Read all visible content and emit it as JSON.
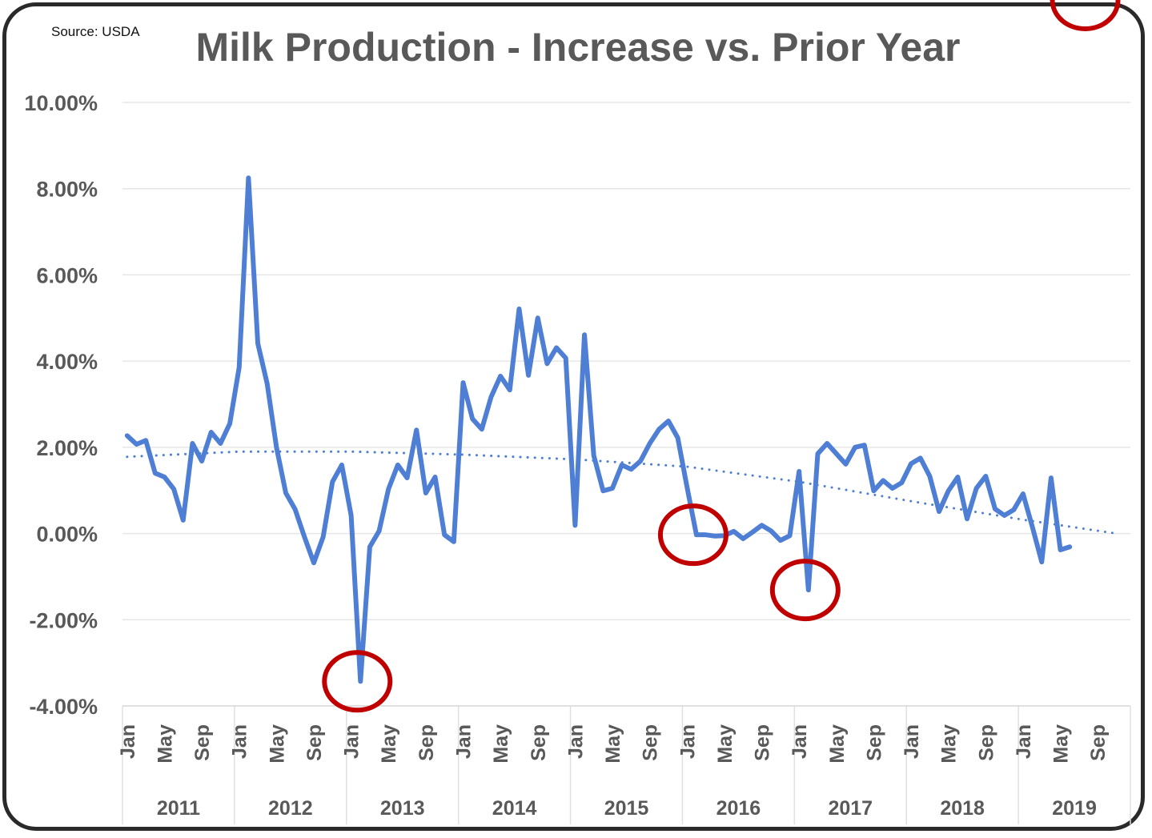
{
  "source_note": "Source: USDA",
  "chart_data": {
    "type": "line",
    "title": "Milk Production - Increase vs. Prior Year",
    "xlabel": "",
    "ylabel": "",
    "ylim": [
      -4,
      10
    ],
    "y_ticks": [
      "10.00%",
      "8.00%",
      "6.00%",
      "4.00%",
      "2.00%",
      "0.00%",
      "-2.00%",
      "-4.00%"
    ],
    "y_tick_values": [
      10,
      8,
      6,
      4,
      2,
      0,
      -2,
      -4
    ],
    "grid": true,
    "legend": "none",
    "years": [
      "2011",
      "2012",
      "2013",
      "2014",
      "2015",
      "2016",
      "2017",
      "2018",
      "2019"
    ],
    "month_tick_labels": [
      "Jan",
      "May",
      "Sep"
    ],
    "x_start": "Jan 2011",
    "series": [
      {
        "unit": "%",
        "color": "#4f7fd4",
        "values": [
          2.27,
          2.07,
          2.16,
          1.4,
          1.31,
          1.03,
          0.31,
          2.09,
          1.68,
          2.35,
          2.09,
          2.55,
          3.85,
          8.25,
          4.41,
          3.48,
          2.0,
          0.94,
          0.56,
          -0.08,
          -0.68,
          -0.08,
          1.2,
          1.59,
          0.42,
          -3.43,
          -0.31,
          0.06,
          1.03,
          1.59,
          1.29,
          2.4,
          0.94,
          1.31,
          -0.03,
          -0.19,
          3.5,
          2.66,
          2.42,
          3.17,
          3.65,
          3.33,
          5.21,
          3.67,
          5.0,
          3.94,
          4.31,
          4.07,
          0.19,
          4.61,
          1.81,
          0.99,
          1.05,
          1.59,
          1.49,
          1.68,
          2.09,
          2.42,
          2.61,
          2.22,
          1.07,
          -0.03,
          -0.03,
          -0.06,
          -0.05,
          0.05,
          -0.12,
          0.03,
          0.19,
          0.06,
          -0.16,
          -0.05,
          1.44,
          -1.31,
          1.85,
          2.09,
          1.85,
          1.61,
          2.0,
          2.05,
          0.99,
          1.23,
          1.05,
          1.18,
          1.62,
          1.75,
          1.33,
          0.51,
          0.99,
          1.31,
          0.34,
          1.05,
          1.33,
          0.57,
          0.42,
          0.55,
          0.92,
          0.15,
          -0.66,
          1.29,
          -0.38,
          -0.31
        ]
      }
    ],
    "trendline": {
      "style": "dotted",
      "color": "#4f7fd4",
      "month_index": [
        0,
        12,
        24,
        36,
        48,
        60,
        72,
        84,
        96,
        106
      ],
      "values": [
        1.78,
        1.9,
        1.9,
        1.83,
        1.72,
        1.55,
        1.2,
        0.75,
        0.32,
        0.0
      ]
    },
    "highlights": {
      "color": "#c00000",
      "month_index": [
        25,
        61,
        73,
        103
      ]
    }
  }
}
